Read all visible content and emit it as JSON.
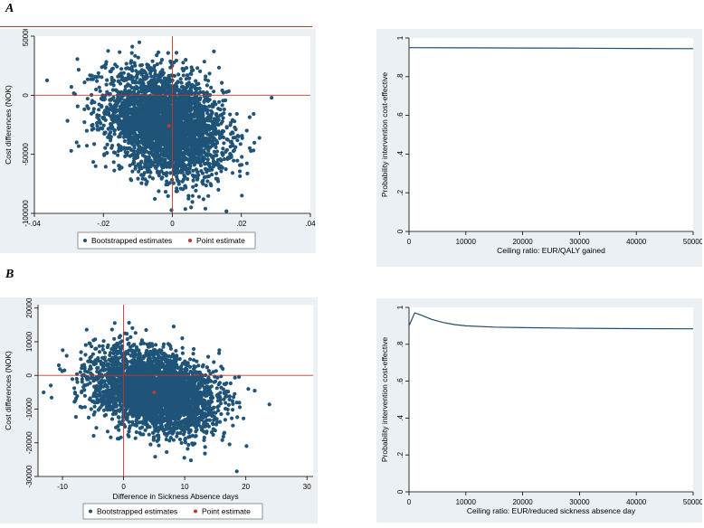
{
  "panels": {
    "a_label": "A",
    "b_label": "B"
  },
  "colors": {
    "scatter": "#1f5478",
    "point_estimate": "#c0392b",
    "refline": "#c0392b",
    "curve": "#1f4e6e",
    "background": "#eaf0f3"
  },
  "chart_data": [
    {
      "id": "scatterA",
      "type": "scatter",
      "xlim": [
        -0.04,
        0.04
      ],
      "ylim": [
        -100000,
        50000
      ],
      "xticks": [
        -0.04,
        -0.02,
        0,
        0.02,
        0.04
      ],
      "xtick_labels": [
        "-.04",
        "-.02",
        "0",
        ".02",
        ".04"
      ],
      "yticks": [
        -100000,
        -50000,
        0,
        50000
      ],
      "ytick_labels": [
        "-100000",
        "-50000",
        "0",
        "50000"
      ],
      "xlabel": "",
      "ylabel": "Cost differences (NOK)",
      "point_estimate": {
        "x": -0.001,
        "y": -26000
      },
      "cloud": {
        "center_x": -0.002,
        "center_y": -24000,
        "sd_x": 0.0085,
        "sd_y": 22000,
        "correlation": -0.3
      },
      "reference_lines": {
        "x": 0,
        "y": 0
      },
      "legend": [
        "Bootstrapped estimates",
        "Point estimate"
      ]
    },
    {
      "id": "ceacA",
      "type": "line",
      "x": [
        0,
        10000,
        20000,
        30000,
        40000,
        50000
      ],
      "y": [
        0.95,
        0.949,
        0.948,
        0.947,
        0.946,
        0.945
      ],
      "xlim": [
        0,
        50000
      ],
      "ylim": [
        0,
        1
      ],
      "xticks": [
        0,
        10000,
        20000,
        30000,
        40000,
        50000
      ],
      "xtick_labels": [
        "0",
        "10000",
        "20000",
        "30000",
        "40000",
        "50000"
      ],
      "yticks": [
        0,
        0.2,
        0.4,
        0.6,
        0.8,
        1
      ],
      "ytick_labels": [
        "0",
        ".2",
        ".4",
        ".6",
        ".8",
        "1"
      ],
      "xlabel": "Ceiling ratio: EUR/QALY gained",
      "ylabel": "Probability intervention cost-effective"
    },
    {
      "id": "scatterB",
      "type": "scatter",
      "xlim": [
        -14,
        31
      ],
      "ylim": [
        -30000,
        21000
      ],
      "xticks": [
        -10,
        0,
        10,
        20,
        30
      ],
      "xtick_labels": [
        "-10",
        "0",
        "10",
        "20",
        "30"
      ],
      "yticks": [
        -30000,
        -20000,
        -10000,
        0,
        10000,
        20000
      ],
      "ytick_labels": [
        "-30000",
        "-20000",
        "-10000",
        "0",
        "10000",
        "20000"
      ],
      "xlabel": "Difference in Sickness Absence days",
      "ylabel": "Cost differences (NOK)",
      "point_estimate": {
        "x": 5,
        "y": -5000
      },
      "cloud": {
        "center_x": 5,
        "center_y": -4500,
        "sd_x": 5,
        "sd_y": 6000,
        "correlation": -0.3
      },
      "reference_lines": {
        "x": 0,
        "y": 0
      },
      "legend": [
        "Bootstrapped estimates",
        "Point estimate"
      ]
    },
    {
      "id": "ceacB",
      "type": "line",
      "x": [
        0,
        1000,
        2000,
        4000,
        6000,
        8000,
        10000,
        15000,
        20000,
        30000,
        40000,
        50000
      ],
      "y": [
        0.9,
        0.97,
        0.96,
        0.935,
        0.918,
        0.907,
        0.9,
        0.893,
        0.89,
        0.887,
        0.885,
        0.884
      ],
      "xlim": [
        0,
        50000
      ],
      "ylim": [
        0,
        1
      ],
      "xticks": [
        0,
        10000,
        20000,
        30000,
        40000,
        50000
      ],
      "xtick_labels": [
        "0",
        "10000",
        "20000",
        "30000",
        "40000",
        "50000"
      ],
      "yticks": [
        0,
        0.2,
        0.4,
        0.6,
        0.8,
        1
      ],
      "ytick_labels": [
        "0",
        ".2",
        ".4",
        ".6",
        ".8",
        "1"
      ],
      "xlabel": "Ceiling ratio: EUR/reduced sickness absence day",
      "ylabel": "Probability intervention cost-effective"
    }
  ]
}
